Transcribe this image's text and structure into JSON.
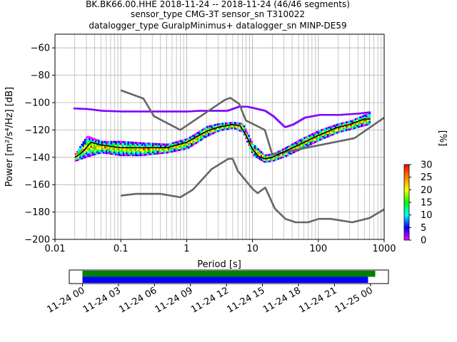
{
  "title_lines": [
    "BK.BK66.00.HHE   2018-11-24 -- 2018-11-24  (46/46 segments)",
    "sensor_type CMG-3T sensor_sn T310022",
    "datalogger_type GuralpMinimus+ datalogger_sn MINP-DE59"
  ],
  "chart_data": [
    {
      "type": "heatmap",
      "subtype": "probabilistic power spectral density",
      "xlabel": "Period [s]",
      "ylabel": "Power [m²/s⁴/Hz] [dB]",
      "xscale": "log",
      "xlim": [
        0.01,
        1000
      ],
      "ylim": [
        -200,
        -50
      ],
      "x_ticks": [
        {
          "value": 0.01,
          "label": "0.01"
        },
        {
          "value": 0.1,
          "label": "0.1"
        },
        {
          "value": 1,
          "label": "1"
        },
        {
          "value": 10,
          "label": "10"
        },
        {
          "value": 100,
          "label": "100"
        },
        {
          "value": 1000,
          "label": "1000"
        }
      ],
      "y_ticks": [
        {
          "value": -60,
          "label": "−60"
        },
        {
          "value": -80,
          "label": "−80"
        },
        {
          "value": -100,
          "label": "−100"
        },
        {
          "value": -120,
          "label": "−120"
        },
        {
          "value": -140,
          "label": "−140"
        },
        {
          "value": -160,
          "label": "−160"
        },
        {
          "value": -180,
          "label": "−180"
        },
        {
          "value": -200,
          "label": "−200"
        }
      ],
      "grid": true,
      "colorbar": {
        "label": "[%]",
        "range": [
          0,
          30
        ],
        "ticks": [
          0,
          5,
          10,
          15,
          20,
          25,
          30
        ],
        "colors": [
          "#ffffff",
          "#ff00ff",
          "#0000ff",
          "#00ffff",
          "#00ff00",
          "#ffff00",
          "#ff8000",
          "#ff0000"
        ]
      },
      "series": [
        {
          "role": "noise-model-high",
          "color": "#666666",
          "points": [
            [
              0.1,
              -91
            ],
            [
              0.22,
              -97
            ],
            [
              0.32,
              -110
            ],
            [
              0.8,
              -120
            ],
            [
              3.8,
              -98
            ],
            [
              4.6,
              -96.5
            ],
            [
              6.3,
              -101
            ],
            [
              7.9,
              -113
            ],
            [
              15.4,
              -120
            ],
            [
              20,
              -138
            ],
            [
              354,
              -126
            ],
            [
              1000,
              -111
            ]
          ]
        },
        {
          "role": "noise-model-low",
          "color": "#666666",
          "points": [
            [
              0.1,
              -168
            ],
            [
              0.17,
              -166.7
            ],
            [
              0.4,
              -166.7
            ],
            [
              0.8,
              -169.2
            ],
            [
              1.24,
              -163.7
            ],
            [
              2.4,
              -148.6
            ],
            [
              4.3,
              -141.1
            ],
            [
              5,
              -141.1
            ],
            [
              6,
              -150
            ],
            [
              10,
              -163
            ],
            [
              12,
              -166.2
            ],
            [
              15.6,
              -162.1
            ],
            [
              21.9,
              -177.5
            ],
            [
              31.6,
              -185
            ],
            [
              45,
              -187.5
            ],
            [
              70,
              -187.5
            ],
            [
              101,
              -185
            ],
            [
              154,
              -185
            ],
            [
              328,
              -187.5
            ],
            [
              600,
              -184.4
            ],
            [
              1000,
              -178
            ]
          ]
        },
        {
          "role": "mode",
          "color": "#000000",
          "points": [
            [
              0.02,
              -140
            ],
            [
              0.025,
              -137
            ],
            [
              0.03,
              -133
            ],
            [
              0.035,
              -129
            ],
            [
              0.05,
              -131
            ],
            [
              0.1,
              -133
            ],
            [
              0.2,
              -133
            ],
            [
              0.5,
              -133
            ],
            [
              1,
              -129
            ],
            [
              2,
              -121
            ],
            [
              3,
              -118
            ],
            [
              5,
              -116
            ],
            [
              6.5,
              -117
            ],
            [
              8,
              -124
            ],
            [
              10,
              -134
            ],
            [
              12,
              -139
            ],
            [
              15,
              -141
            ],
            [
              20,
              -140
            ],
            [
              30,
              -136
            ],
            [
              50,
              -131
            ],
            [
              100,
              -124
            ],
            [
              200,
              -118
            ],
            [
              300,
              -116
            ],
            [
              500,
              -112
            ],
            [
              600,
              -112
            ]
          ]
        }
      ],
      "density_band": {
        "points": [
          [
            0.02,
            -143,
            -137
          ],
          [
            0.03,
            -140,
            -124
          ],
          [
            0.05,
            -137,
            -128
          ],
          [
            0.1,
            -139,
            -128
          ],
          [
            0.2,
            -139,
            -129
          ],
          [
            0.5,
            -137,
            -130
          ],
          [
            1,
            -134,
            -126
          ],
          [
            2,
            -125,
            -117
          ],
          [
            3,
            -121,
            -115
          ],
          [
            5,
            -119,
            -114
          ],
          [
            7,
            -122,
            -115
          ],
          [
            10,
            -139,
            -130
          ],
          [
            15,
            -144,
            -138
          ],
          [
            20,
            -143,
            -137
          ],
          [
            30,
            -140,
            -133
          ],
          [
            50,
            -135,
            -127
          ],
          [
            100,
            -128,
            -120
          ],
          [
            200,
            -122,
            -115
          ],
          [
            300,
            -120,
            -113
          ],
          [
            600,
            -116,
            -107
          ]
        ]
      },
      "outlier_points": [
        [
          0.019,
          -104.3
        ],
        [
          0.03,
          -104.7
        ],
        [
          0.05,
          -106
        ],
        [
          0.1,
          -106.5
        ],
        [
          0.2,
          -106.5
        ],
        [
          0.4,
          -106.5
        ],
        [
          0.7,
          -106.5
        ],
        [
          1,
          -106.5
        ],
        [
          1.5,
          -106
        ],
        [
          2.5,
          -106
        ],
        [
          4,
          -106
        ],
        [
          6,
          -103
        ],
        [
          8,
          -103
        ],
        [
          10,
          -104
        ],
        [
          15,
          -106
        ],
        [
          20,
          -110
        ],
        [
          30,
          -118
        ],
        [
          40,
          -116
        ],
        [
          60,
          -111
        ],
        [
          100,
          -109
        ],
        [
          200,
          -109
        ],
        [
          400,
          -108
        ],
        [
          600,
          -107
        ]
      ]
    },
    {
      "type": "timeline",
      "x_tick_labels": [
        "11-24 00",
        "11-24 03",
        "11-24 06",
        "11-24 09",
        "11-24 12",
        "11-24 15",
        "11-24 18",
        "11-24 21",
        "11-25 00"
      ],
      "x_range_hours": [
        -1.1,
        25.5
      ],
      "bars": [
        {
          "role": "data availability",
          "color": "#008000",
          "start_hours": 0,
          "end_hours": 24.4
        },
        {
          "role": "segments used",
          "color": "#0000ff",
          "start_hours": 0,
          "end_hours": 23.8
        }
      ]
    }
  ]
}
